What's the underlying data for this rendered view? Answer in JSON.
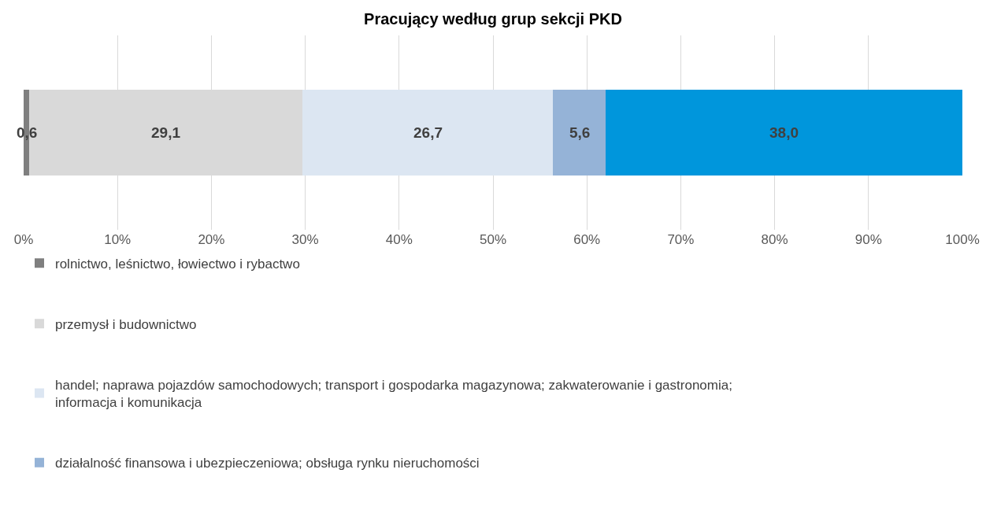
{
  "chart_data": {
    "type": "bar",
    "title": "Pracujący według grup sekcji PKD",
    "orientation": "horizontal",
    "stacked": true,
    "categories": [
      null
    ],
    "series": [
      {
        "name": "rolnictwo, leśnictwo, łowiectwo i rybactwo",
        "color": "#7f7f7f",
        "values": [
          0.6
        ],
        "value_labels": [
          "0,6"
        ]
      },
      {
        "name": "przemysł i budownictwo",
        "color": "#d9d9d9",
        "values": [
          29.1
        ],
        "value_labels": [
          "29,1"
        ]
      },
      {
        "name": "handel; naprawa pojazdów samochodowych; transport i gospodarka magazynowa; zakwaterowanie i gastronomia; informacja i komunikacja",
        "color": "#dce6f2",
        "values": [
          26.7
        ],
        "value_labels": [
          "26,7"
        ]
      },
      {
        "name": "działalność finansowa i ubezpieczeniowa; obsługa rynku nieruchomości",
        "color": "#95b3d7",
        "values": [
          5.6
        ],
        "value_labels": [
          "5,6"
        ]
      },
      {
        "color": "#0096dc",
        "values": [
          38.0
        ],
        "value_labels": [
          "38,0"
        ]
      }
    ],
    "xlim": [
      0,
      100
    ],
    "xticks": [
      {
        "value": 0,
        "label": "0%"
      },
      {
        "value": 10,
        "label": "10%"
      },
      {
        "value": 20,
        "label": "20%"
      },
      {
        "value": 30,
        "label": "30%"
      },
      {
        "value": 40,
        "label": "40%"
      },
      {
        "value": 50,
        "label": "50%"
      },
      {
        "value": 60,
        "label": "60%"
      },
      {
        "value": 70,
        "label": "70%"
      },
      {
        "value": 80,
        "label": "80%"
      },
      {
        "value": 90,
        "label": "90%"
      },
      {
        "value": 100,
        "label": "100%"
      }
    ],
    "grid": "x",
    "legend": "bottom",
    "tick_labels": "x"
  }
}
